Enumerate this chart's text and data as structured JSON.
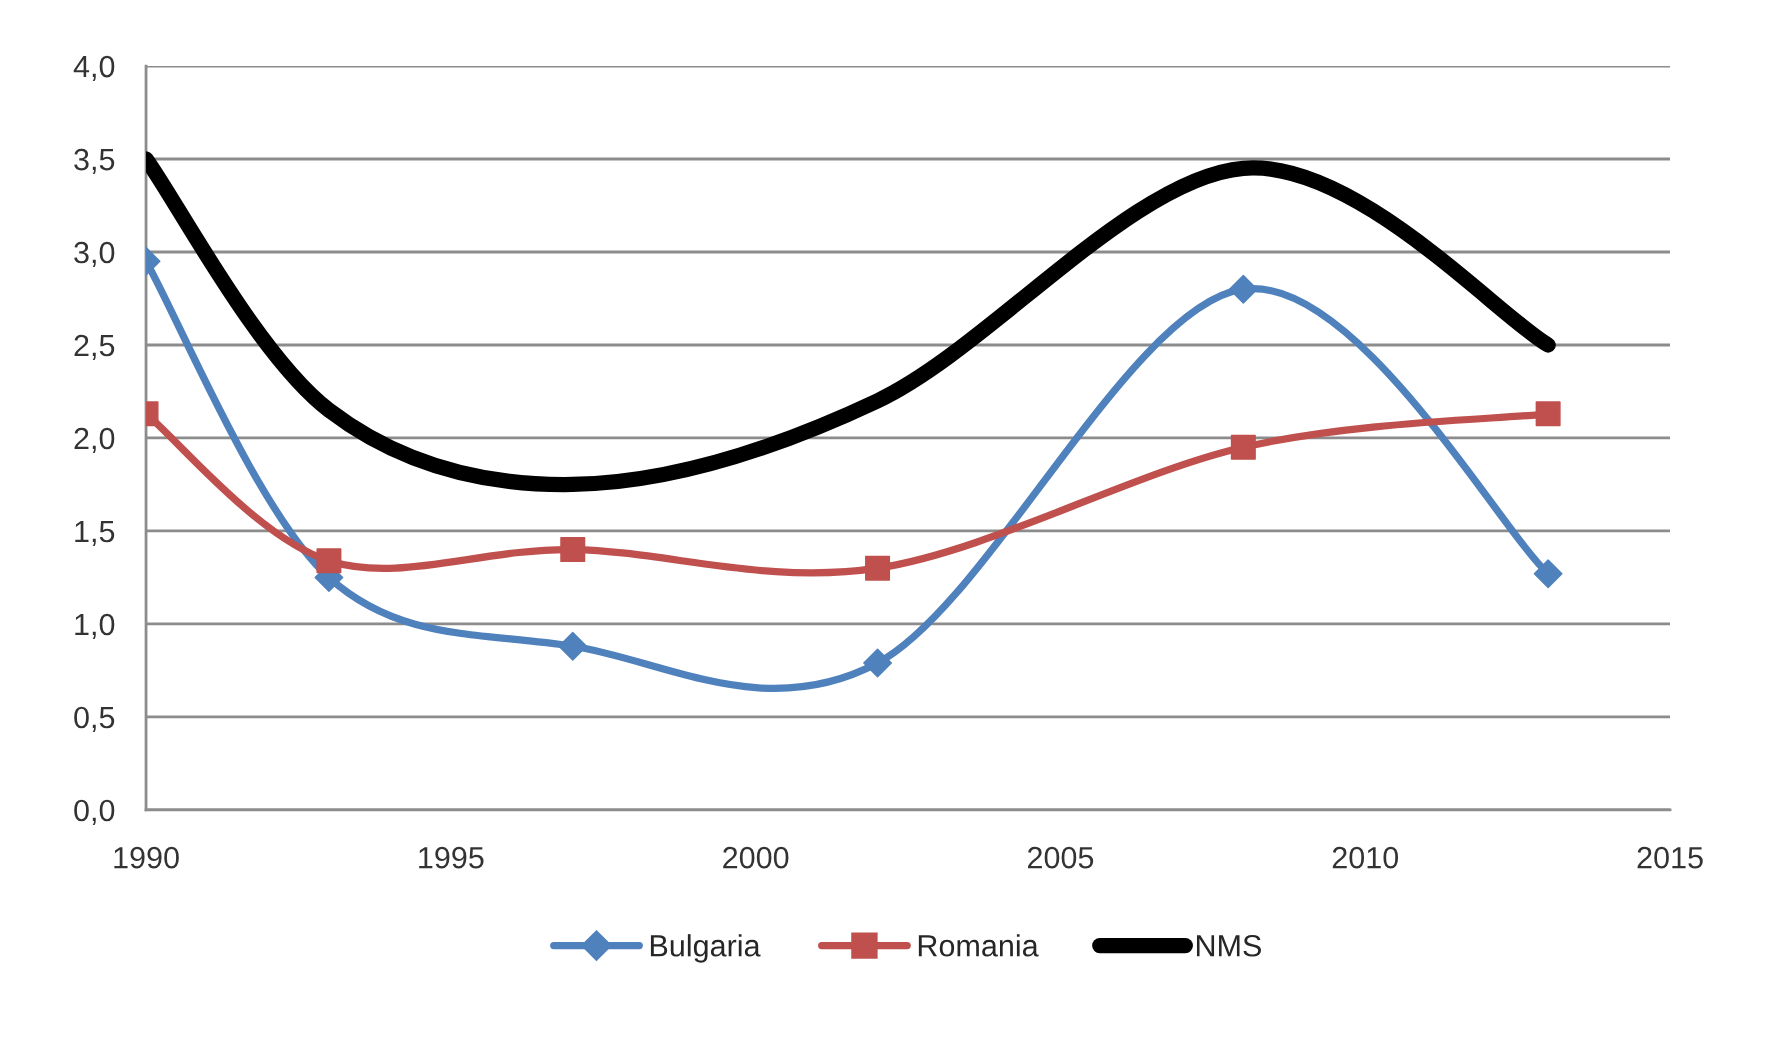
{
  "chart_data": {
    "type": "line",
    "x": [
      1990,
      1993,
      1997,
      2002,
      2008,
      2013
    ],
    "series": [
      {
        "name": "Bulgaria",
        "color": "#4f81bd",
        "marker": "diamond",
        "values": [
          2.95,
          1.25,
          0.88,
          0.79,
          2.8,
          1.27
        ]
      },
      {
        "name": "Romania",
        "color": "#c0504d",
        "marker": "square",
        "values": [
          2.13,
          1.34,
          1.4,
          1.3,
          1.95,
          2.13
        ]
      },
      {
        "name": "NMS",
        "color": "#000000",
        "marker": "none",
        "values": [
          3.5,
          2.15,
          1.75,
          2.2,
          3.45,
          2.5
        ]
      }
    ],
    "xlim": [
      1990,
      2015
    ],
    "xticks": [
      1990,
      1995,
      2000,
      2005,
      2010,
      2015
    ],
    "ylim": [
      0,
      4
    ],
    "yticks": [
      {
        "value": 0,
        "label": "0,0"
      },
      {
        "value": 0.5,
        "label": "0,5"
      },
      {
        "value": 1,
        "label": "1,0"
      },
      {
        "value": 1.5,
        "label": "1,5"
      },
      {
        "value": 2,
        "label": "2,0"
      },
      {
        "value": 2.5,
        "label": "2,5"
      },
      {
        "value": 3,
        "label": "3,0"
      },
      {
        "value": 3.5,
        "label": "3,5"
      },
      {
        "value": 4,
        "label": "4,0"
      }
    ],
    "grid": "y",
    "legend": "bottom",
    "line_style": "solid"
  }
}
